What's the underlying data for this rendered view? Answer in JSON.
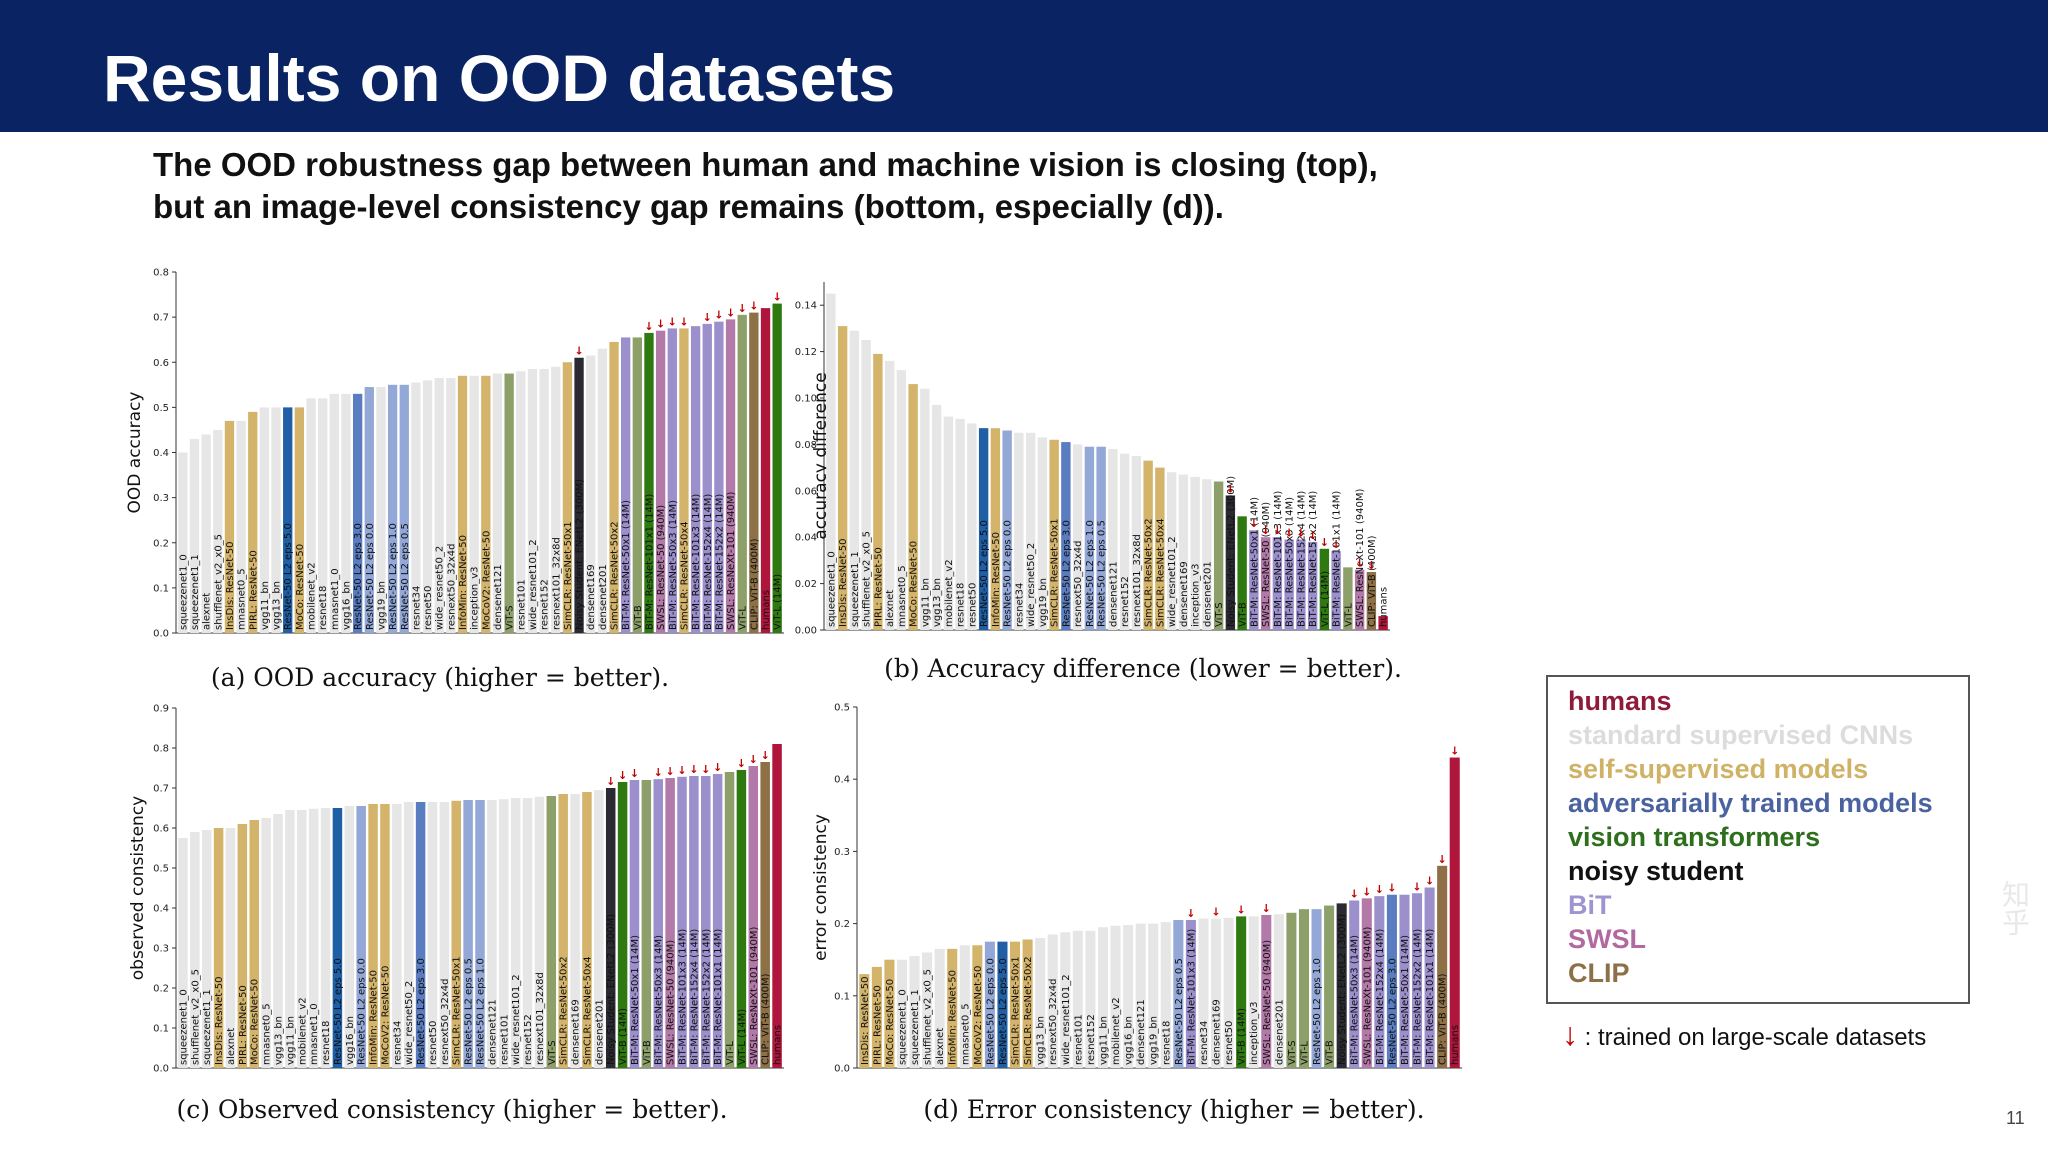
{
  "slide": {
    "title": "Results on OOD datasets",
    "subtitle_line1": "The OOD robustness gap between human and machine vision is closing (top),",
    "subtitle_line2": "but an image-level consistency gap remains (bottom, especially (d)).",
    "page_number": "11",
    "watermark": "知乎"
  },
  "legend": {
    "items": [
      {
        "label": "humans",
        "color": "#8f1a3a"
      },
      {
        "label": "standard supervised CNNs",
        "color": "#dcdcdc"
      },
      {
        "label": "self-supervised models",
        "color": "#cfb265"
      },
      {
        "label": "adversarially trained models",
        "color": "#4a62a0"
      },
      {
        "label": "vision transformers",
        "color": "#2e6f1d"
      },
      {
        "label": "noisy student",
        "color": "#111111"
      },
      {
        "label": "BiT",
        "color": "#9e95d0"
      },
      {
        "label": "SWSL",
        "color": "#b06aa0"
      },
      {
        "label": "CLIP",
        "color": "#8c7148"
      }
    ],
    "arrow": "↓",
    "note": ": trained on large-scale datasets"
  },
  "colors": {
    "human": "#b0153c",
    "standard": "#e6e6e6",
    "self": "#d4b46b",
    "adv": "#94a8d8",
    "adv_dark": "#1f5fa6",
    "adv_mid": "#5a7cc0",
    "vit": "#2f7a10",
    "vit_light": "#8ea06a",
    "noisy": "#2a2a32",
    "bit": "#9b8fcc",
    "swsl": "#b379a8",
    "clip": "#8d7045",
    "arrow": "#c00000"
  },
  "chart_data": [
    {
      "id": "a",
      "type": "bar",
      "caption": "(a) OOD accuracy (higher = better).",
      "ylabel": "OOD accuracy",
      "ylim": [
        0,
        0.8
      ],
      "yticks": [
        0.0,
        0.1,
        0.2,
        0.3,
        0.4,
        0.5,
        0.6,
        0.7,
        0.8
      ],
      "tick_decimals": 1,
      "categories": [
        "squeezenet1_0",
        "squeezenet1_1",
        "alexnet",
        "shufflenet_v2_x0_5",
        "InsDis: ResNet-50",
        "mnasnet0_5",
        "PIRL: ResNet-50",
        "vgg11_bn",
        "vgg13_bn",
        "ResNet-50 L2 eps 5.0",
        "MoCo: ResNet-50",
        "mobilenet_v2",
        "resnet18",
        "mnasnet1_0",
        "vgg16_bn",
        "ResNet-50 L2 eps 3.0",
        "ResNet-50 L2 eps 0.0",
        "vgg19_bn",
        "ResNet-50 L2 eps 1.0",
        "ResNet-50 L2 eps 0.5",
        "resnet34",
        "resnet50",
        "wide_resnet50_2",
        "resnext50_32x4d",
        "InfoMin: ResNet-50",
        "inception_v3",
        "MoCoV2: ResNet-50",
        "densenet121",
        "ViT-S",
        "resnet101",
        "wide_resnet101_2",
        "resnet152",
        "resnext101_32x8d",
        "SimCLR: ResNet-50x1",
        "Noisy Student: ENetL2 (300M)",
        "densenet169",
        "densenet201",
        "SimCLR: ResNet-50x2",
        "BiT-M: ResNet-50x1 (14M)",
        "ViT-B",
        "BiT-M: ResNet-101x1 (14M)",
        "SWSL: ResNet-50 (940M)",
        "BiT-M: ResNet-50x3 (14M)",
        "SimCLR: ResNet-50x4",
        "BiT-M: ResNet-101x3 (14M)",
        "BiT-M: ResNet-152x4 (14M)",
        "BiT-M: ResNet-152x2 (14M)",
        "SWSL: ResNeXt-101 (940M)",
        "ViT-L",
        "CLIP: ViT-B (400M)",
        "humans",
        "ViT-L (14M)"
      ],
      "groups": [
        "standard",
        "standard",
        "standard",
        "standard",
        "self",
        "standard",
        "self",
        "standard",
        "standard",
        "adv_dark",
        "self",
        "standard",
        "standard",
        "standard",
        "standard",
        "adv_mid",
        "adv",
        "standard",
        "adv",
        "adv",
        "standard",
        "standard",
        "standard",
        "standard",
        "self",
        "standard",
        "self",
        "standard",
        "vit_light",
        "standard",
        "standard",
        "standard",
        "standard",
        "self",
        "noisy",
        "standard",
        "standard",
        "self",
        "bit",
        "vit_light",
        "vit",
        "swsl",
        "bit",
        "self",
        "bit",
        "bit",
        "bit",
        "swsl",
        "vit_light",
        "clip",
        "human",
        "vit"
      ],
      "arrows": [
        34,
        40,
        41,
        42,
        43,
        45,
        46,
        47,
        48,
        49,
        51
      ],
      "values": [
        0.4,
        0.43,
        0.44,
        0.45,
        0.47,
        0.47,
        0.49,
        0.5,
        0.5,
        0.5,
        0.5,
        0.52,
        0.52,
        0.53,
        0.53,
        0.53,
        0.545,
        0.545,
        0.55,
        0.55,
        0.555,
        0.56,
        0.565,
        0.565,
        0.57,
        0.57,
        0.57,
        0.575,
        0.575,
        0.58,
        0.585,
        0.585,
        0.59,
        0.6,
        0.61,
        0.615,
        0.63,
        0.645,
        0.655,
        0.655,
        0.665,
        0.67,
        0.675,
        0.675,
        0.68,
        0.685,
        0.69,
        0.695,
        0.705,
        0.71,
        0.72,
        0.73
      ]
    },
    {
      "id": "b",
      "type": "bar",
      "caption": "(b) Accuracy difference (lower = better).",
      "ylabel": "accuracy difference",
      "ylim": [
        0,
        0.15
      ],
      "yticks": [
        0.0,
        0.02,
        0.04,
        0.06,
        0.08,
        0.1,
        0.12,
        0.14
      ],
      "tick_decimals": 2,
      "categories": [
        "squeezenet1_0",
        "InsDis: ResNet-50",
        "squeezenet1_1",
        "shufflenet_v2_x0_5",
        "PIRL: ResNet-50",
        "alexnet",
        "mnasnet0_5",
        "MoCo: ResNet-50",
        "vgg11_bn",
        "vgg13_bn",
        "mobilenet_v2",
        "resnet18",
        "resnet50",
        "ResNet-50 L2 eps 5.0",
        "InfoMin: ResNet-50",
        "ResNet-50 L2 eps 0.0",
        "resnet34",
        "wide_resnet50_2",
        "vgg19_bn",
        "SimCLR: ResNet-50x1",
        "ResNet-50 L2 eps 3.0",
        "resnext50_32x4d",
        "ResNet-50 L2 eps 1.0",
        "ResNet-50 L2 eps 0.5",
        "densenet121",
        "resnet152",
        "resnext101_32x8d",
        "SimCLR: ResNet-50x2",
        "SimCLR: ResNet-50x4",
        "wide_resnet101_2",
        "densenet169",
        "inception_v3",
        "densenet201",
        "ViT-S",
        "Noisy Student: ENetL2 (300M)",
        "ViT-B",
        "BiT-M: ResNet-50x1 (14M)",
        "SWSL: ResNet-50 (940M)",
        "BiT-M: ResNet-101x3 (14M)",
        "BiT-M: ResNet-50x3 (14M)",
        "BiT-M: ResNet-152x4 (14M)",
        "BiT-M: ResNet-152x2 (14M)",
        "ViT-L (14M)",
        "BiT-M: ResNet-101x1 (14M)",
        "ViT-L",
        "SWSL: ResNeXt-101 (940M)",
        "CLIP: ViT-B (400M)",
        "humans"
      ],
      "groups": [
        "standard",
        "self",
        "standard",
        "standard",
        "self",
        "standard",
        "standard",
        "self",
        "standard",
        "standard",
        "standard",
        "standard",
        "standard",
        "adv_dark",
        "self",
        "adv",
        "standard",
        "standard",
        "standard",
        "self",
        "adv_mid",
        "standard",
        "adv",
        "adv",
        "standard",
        "standard",
        "standard",
        "self",
        "self",
        "standard",
        "standard",
        "standard",
        "standard",
        "vit_light",
        "noisy",
        "vit",
        "bit",
        "swsl",
        "bit",
        "bit",
        "bit",
        "bit",
        "vit",
        "bit",
        "vit_light",
        "swsl",
        "clip",
        "human"
      ],
      "arrows": [
        34,
        36,
        37,
        38,
        39,
        40,
        41,
        42,
        43,
        45,
        46
      ],
      "values": [
        0.145,
        0.131,
        0.129,
        0.125,
        0.119,
        0.116,
        0.112,
        0.106,
        0.104,
        0.097,
        0.092,
        0.091,
        0.089,
        0.087,
        0.087,
        0.086,
        0.085,
        0.085,
        0.083,
        0.082,
        0.081,
        0.08,
        0.079,
        0.079,
        0.078,
        0.076,
        0.075,
        0.073,
        0.07,
        0.068,
        0.067,
        0.066,
        0.065,
        0.064,
        0.058,
        0.049,
        0.043,
        0.04,
        0.04,
        0.039,
        0.039,
        0.038,
        0.035,
        0.034,
        0.027,
        0.026,
        0.025,
        0.006
      ]
    },
    {
      "id": "c",
      "type": "bar",
      "caption": "(c) Observed consistency (higher = better).",
      "ylabel": "observed consistency",
      "ylim": [
        0,
        0.9
      ],
      "yticks": [
        0.0,
        0.1,
        0.2,
        0.3,
        0.4,
        0.5,
        0.6,
        0.7,
        0.8,
        0.9
      ],
      "tick_decimals": 1,
      "categories": [
        "squeezenet1_0",
        "shufflenet_v2_x0_5",
        "squeezenet1_1",
        "InsDis: ResNet-50",
        "alexnet",
        "PIRL: ResNet-50",
        "MoCo: ResNet-50",
        "mnasnet0_5",
        "vgg13_bn",
        "vgg11_bn",
        "mobilenet_v2",
        "mnasnet1_0",
        "resnet18",
        "ResNet-50 L2 eps 5.0",
        "vgg16_bn",
        "ResNet-50 L2 eps 0.0",
        "InfoMin: ResNet-50",
        "MoCoV2: ResNet-50",
        "resnet34",
        "wide_resnet50_2",
        "ResNet-50 L2 eps 3.0",
        "resnet50",
        "resnext50_32x4d",
        "SimCLR: ResNet-50x1",
        "ResNet-50 L2 eps 0.5",
        "ResNet-50 L2 eps 1.0",
        "densenet121",
        "resnet101",
        "wide_resnet101_2",
        "resnet152",
        "resnext101_32x8d",
        "ViT-S",
        "SimCLR: ResNet-50x2",
        "densenet169",
        "SimCLR: ResNet-50x4",
        "densenet201",
        "Noisy Student: ENetL2 (300M)",
        "ViT-B (14M)",
        "BiT-M: ResNet-50x1 (14M)",
        "ViT-B",
        "BiT-M: ResNet-50x3 (14M)",
        "SWSL: ResNet-50 (940M)",
        "BiT-M: ResNet-101x3 (14M)",
        "BiT-M: ResNet-152x4 (14M)",
        "BiT-M: ResNet-152x2 (14M)",
        "BiT-M: ResNet-101x1 (14M)",
        "ViT-L",
        "ViT-L (14M)",
        "SWSL: ResNeXt-101 (940M)",
        "CLIP: ViT-B (400M)",
        "humans"
      ],
      "groups": [
        "standard",
        "standard",
        "standard",
        "self",
        "standard",
        "self",
        "self",
        "standard",
        "standard",
        "standard",
        "standard",
        "standard",
        "standard",
        "adv_dark",
        "standard",
        "adv",
        "self",
        "self",
        "standard",
        "standard",
        "adv_mid",
        "standard",
        "standard",
        "self",
        "adv",
        "adv",
        "standard",
        "standard",
        "standard",
        "standard",
        "standard",
        "vit_light",
        "self",
        "standard",
        "self",
        "standard",
        "noisy",
        "vit",
        "bit",
        "vit_light",
        "bit",
        "swsl",
        "bit",
        "bit",
        "bit",
        "bit",
        "vit_light",
        "vit",
        "swsl",
        "clip",
        "human"
      ],
      "arrows": [
        36,
        37,
        38,
        40,
        41,
        42,
        43,
        44,
        45,
        47,
        48,
        49
      ],
      "values": [
        0.575,
        0.59,
        0.595,
        0.6,
        0.6,
        0.61,
        0.62,
        0.625,
        0.635,
        0.645,
        0.645,
        0.648,
        0.65,
        0.65,
        0.655,
        0.655,
        0.66,
        0.66,
        0.66,
        0.665,
        0.665,
        0.665,
        0.665,
        0.668,
        0.67,
        0.67,
        0.67,
        0.672,
        0.675,
        0.675,
        0.678,
        0.68,
        0.685,
        0.685,
        0.69,
        0.695,
        0.7,
        0.715,
        0.72,
        0.72,
        0.722,
        0.725,
        0.728,
        0.73,
        0.73,
        0.735,
        0.74,
        0.745,
        0.755,
        0.765,
        0.81
      ]
    },
    {
      "id": "d",
      "type": "bar",
      "caption": "(d) Error consistency (higher = better).",
      "ylabel": "error consistency",
      "ylim": [
        0,
        0.5
      ],
      "yticks": [
        0.0,
        0.1,
        0.2,
        0.3,
        0.4,
        0.5
      ],
      "tick_decimals": 1,
      "categories": [
        "InsDis: ResNet-50",
        "PIRL: ResNet-50",
        "MoCo: ResNet-50",
        "squeezenet1_0",
        "squeezenet1_1",
        "shufflenet_v2_x0_5",
        "alexnet",
        "InfoMin: ResNet-50",
        "mnasnet0_5",
        "MoCoV2: ResNet-50",
        "ResNet-50 L2 eps 0.0",
        "ResNet-50 L2 eps 5.0",
        "SimCLR: ResNet-50x1",
        "SimCLR: ResNet-50x2",
        "vgg13_bn",
        "resnext50_32x4d",
        "wide_resnet101_2",
        "resnet101",
        "resnet152",
        "vgg11_bn",
        "mobilenet_v2",
        "vgg16_bn",
        "densenet121",
        "vgg19_bn",
        "resnet18",
        "ResNet-50 L2 eps 0.5",
        "BiT-M: ResNet-101x3 (14M)",
        "resnet34",
        "densenet169",
        "resnet50",
        "ViT-B (14M)",
        "inception_v3",
        "SWSL: ResNet-50 (940M)",
        "densenet201",
        "ViT-S",
        "ViT-L",
        "ResNet-50 L2 eps 1.0",
        "ViT-B",
        "Noisy Student: ENetL2 (300M)",
        "BiT-M: ResNet-50x3 (14M)",
        "SWSL: ResNeXt-101 (940M)",
        "BiT-M: ResNet-152x4 (14M)",
        "ResNet-50 L2 eps 3.0",
        "BiT-M: ResNet-50x1 (14M)",
        "BiT-M: ResNet-152x2 (14M)",
        "BiT-M: ResNet-101x1 (14M)",
        "CLIP: ViT-B (400M)",
        "humans"
      ],
      "groups": [
        "self",
        "self",
        "self",
        "standard",
        "standard",
        "standard",
        "standard",
        "self",
        "standard",
        "self",
        "adv",
        "adv_dark",
        "self",
        "self",
        "standard",
        "standard",
        "standard",
        "standard",
        "standard",
        "standard",
        "standard",
        "standard",
        "standard",
        "standard",
        "standard",
        "adv",
        "bit",
        "standard",
        "standard",
        "standard",
        "vit",
        "standard",
        "swsl",
        "standard",
        "vit_light",
        "vit_light",
        "adv",
        "vit_light",
        "noisy",
        "bit",
        "swsl",
        "bit",
        "adv_mid",
        "bit",
        "bit",
        "bit",
        "clip",
        "human"
      ],
      "arrows": [
        26,
        28,
        30,
        32,
        39,
        40,
        41,
        42,
        44,
        45,
        46,
        47
      ],
      "values": [
        0.13,
        0.14,
        0.15,
        0.15,
        0.155,
        0.16,
        0.165,
        0.165,
        0.17,
        0.17,
        0.175,
        0.175,
        0.175,
        0.178,
        0.18,
        0.185,
        0.188,
        0.19,
        0.19,
        0.195,
        0.197,
        0.198,
        0.2,
        0.2,
        0.202,
        0.205,
        0.205,
        0.207,
        0.207,
        0.208,
        0.21,
        0.21,
        0.212,
        0.213,
        0.215,
        0.22,
        0.22,
        0.225,
        0.228,
        0.232,
        0.235,
        0.238,
        0.24,
        0.24,
        0.242,
        0.25,
        0.28,
        0.43
      ]
    }
  ]
}
